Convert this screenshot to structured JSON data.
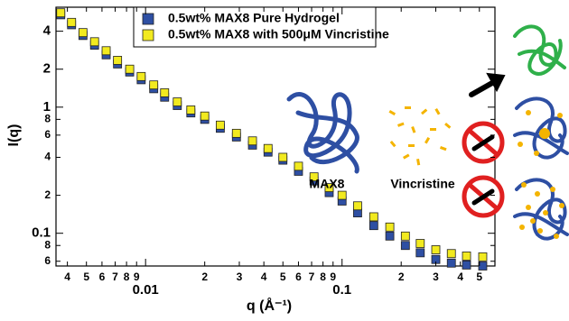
{
  "chart_data": {
    "type": "scatter",
    "xlabel": "q (Å⁻¹)",
    "ylabel": "I(q)",
    "xscale": "log",
    "yscale": "log",
    "xlim": [
      0.0035,
      0.6
    ],
    "ylim": [
      0.055,
      6.2
    ],
    "xticks": [
      {
        "value": 0.004,
        "label": "4"
      },
      {
        "value": 0.005,
        "label": "5"
      },
      {
        "value": 0.006,
        "label": "6"
      },
      {
        "value": 0.007,
        "label": "7"
      },
      {
        "value": 0.008,
        "label": "8"
      },
      {
        "value": 0.009,
        "label": "9"
      },
      0.01,
      {
        "value": 0.02,
        "label": "2"
      },
      {
        "value": 0.03,
        "label": "3"
      },
      {
        "value": 0.04,
        "label": "4"
      },
      {
        "value": 0.05,
        "label": "5"
      },
      {
        "value": 0.06,
        "label": "6"
      },
      {
        "value": 0.07,
        "label": "7"
      },
      {
        "value": 0.08,
        "label": "8"
      },
      {
        "value": 0.09,
        "label": "9"
      },
      0.1,
      {
        "value": 0.2,
        "label": "2"
      },
      {
        "value": 0.3,
        "label": "3"
      },
      {
        "value": 0.4,
        "label": "4"
      },
      {
        "value": 0.5,
        "label": "5"
      }
    ],
    "yticks": [
      {
        "value": 0.06,
        "label": "6"
      },
      {
        "value": 0.08,
        "label": "8"
      },
      0.1,
      {
        "value": 0.2,
        "label": "2"
      },
      {
        "value": 0.4,
        "label": "4"
      },
      {
        "value": 0.6,
        "label": "6"
      },
      {
        "value": 0.8,
        "label": "8"
      },
      1,
      2,
      4
    ],
    "annotations": [
      "MAX8",
      "Vincristine"
    ],
    "x": [
      0.0037,
      0.0042,
      0.0048,
      0.0055,
      0.0063,
      0.0072,
      0.0083,
      0.0095,
      0.011,
      0.0125,
      0.0145,
      0.017,
      0.02,
      0.024,
      0.029,
      0.035,
      0.042,
      0.05,
      0.06,
      0.072,
      0.086,
      0.1,
      0.12,
      0.145,
      0.175,
      0.21,
      0.25,
      0.3,
      0.36,
      0.43,
      0.52
    ],
    "series": [
      {
        "name": "0.5wt% MAX8 Pure Hydrogel",
        "color": "#2e4fa3",
        "values": [
          5.4,
          4.5,
          3.7,
          3.1,
          2.6,
          2.2,
          1.9,
          1.65,
          1.4,
          1.2,
          1.03,
          0.9,
          0.8,
          0.68,
          0.58,
          0.5,
          0.44,
          0.38,
          0.31,
          0.26,
          0.21,
          0.18,
          0.145,
          0.115,
          0.095,
          0.08,
          0.07,
          0.062,
          0.058,
          0.056,
          0.055
        ]
      },
      {
        "name": "0.5wt% MAX8 with 500μM Vincristine",
        "color": "#f2ea1f",
        "values": [
          5.6,
          4.7,
          3.9,
          3.3,
          2.8,
          2.35,
          2.0,
          1.75,
          1.5,
          1.3,
          1.1,
          0.95,
          0.85,
          0.72,
          0.62,
          0.54,
          0.47,
          0.4,
          0.34,
          0.28,
          0.23,
          0.2,
          0.165,
          0.135,
          0.112,
          0.095,
          0.083,
          0.074,
          0.069,
          0.066,
          0.065
        ]
      }
    ]
  }
}
